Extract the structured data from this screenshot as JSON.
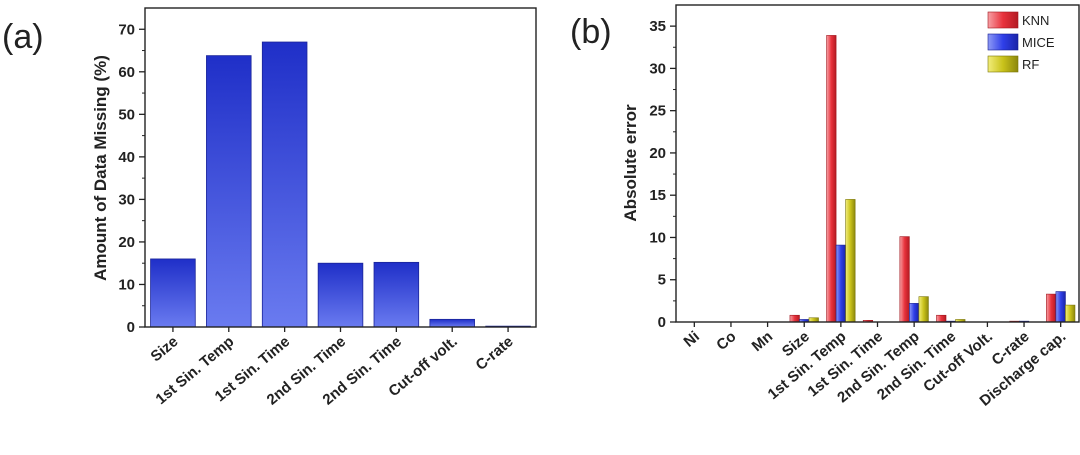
{
  "chart_data": [
    {
      "panel_label": "(a)",
      "type": "bar",
      "ylabel": "Amount of Data Missing (%)",
      "ylim": [
        0,
        75
      ],
      "yticks": [
        0,
        10,
        20,
        30,
        40,
        50,
        60,
        70
      ],
      "categories": [
        "Size",
        "1st Sin. Temp",
        "1st Sin. Time",
        "2nd Sin. Time",
        "2nd Sin. Time",
        "Cut-off volt.",
        "C-rate"
      ],
      "values": [
        16,
        63.8,
        67,
        15,
        15.2,
        1.8,
        0.2
      ],
      "color": "#3f4fe0"
    },
    {
      "panel_label": "(b)",
      "type": "bar",
      "ylabel": "Absolute error",
      "ylim": [
        0,
        37.5
      ],
      "yticks": [
        0,
        5,
        10,
        15,
        20,
        25,
        30,
        35
      ],
      "categories": [
        "Ni",
        "Co",
        "Mn",
        "Size",
        "1st Sin. Temp",
        "1st Sin. Time",
        "2nd Sin. Temp",
        "2nd Sin. Time",
        "Cut-off Volt.",
        "C-rate",
        "Discharge cap."
      ],
      "series": [
        {
          "name": "KNN",
          "color": "#e8323c",
          "values": [
            0,
            0,
            0,
            0.8,
            33.9,
            0.2,
            10.1,
            0.8,
            0,
            0.1,
            3.3
          ]
        },
        {
          "name": "MICE",
          "color": "#2f3fe8",
          "values": [
            0,
            0,
            0,
            0.3,
            9.1,
            0,
            2.2,
            0.1,
            0,
            0.1,
            3.6
          ]
        },
        {
          "name": "RF",
          "color": "#c9c21a",
          "values": [
            0,
            0,
            0,
            0.5,
            14.5,
            0,
            3.0,
            0.3,
            0,
            0,
            2.0
          ]
        }
      ],
      "legend_position": "top-right"
    }
  ]
}
